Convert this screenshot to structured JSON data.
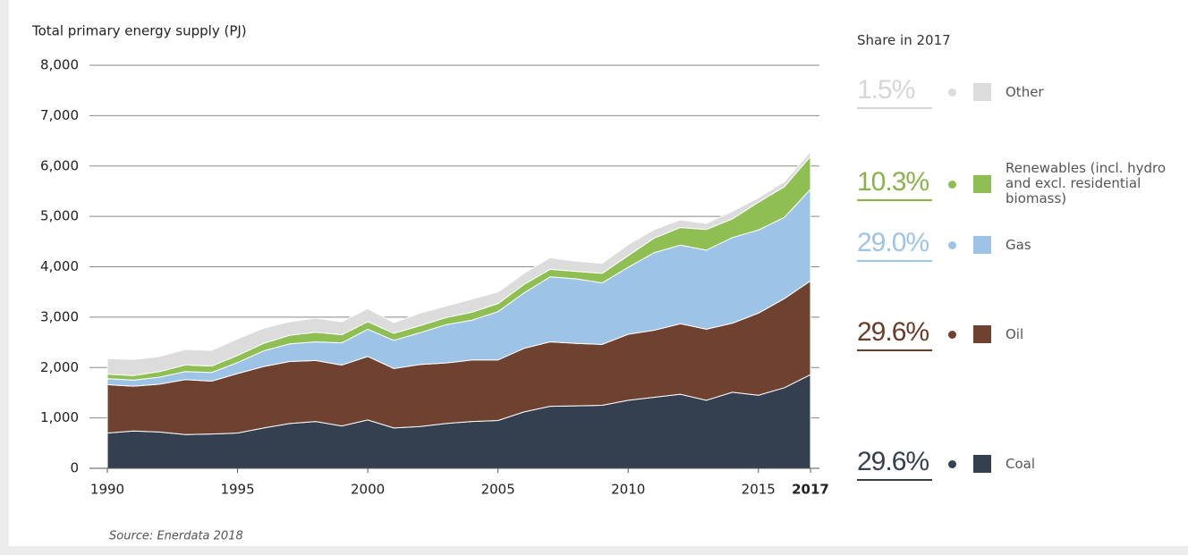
{
  "chart_data": {
    "type": "stacked_area",
    "ylabel": "Total primary energy supply (PJ)",
    "source": "Source: Enerdata 2018",
    "legend_title": "Share in 2017",
    "x": [
      1990,
      1991,
      1992,
      1993,
      1994,
      1995,
      1996,
      1997,
      1998,
      1999,
      2000,
      2001,
      2002,
      2003,
      2004,
      2005,
      2006,
      2007,
      2008,
      2009,
      2010,
      2011,
      2012,
      2013,
      2014,
      2015,
      2016,
      2017
    ],
    "xlim": [
      1990,
      2017
    ],
    "xticks": [
      1990,
      1995,
      2000,
      2005,
      2010,
      2015,
      2017
    ],
    "ylim": [
      0,
      8000
    ],
    "yticks": [
      0,
      {
        "value": 1000,
        "label": "1,000"
      },
      {
        "value": 2000,
        "label": "2,000"
      },
      {
        "value": 3000,
        "label": "3,000"
      },
      {
        "value": 4000,
        "label": "4,000"
      },
      {
        "value": 5000,
        "label": "5,000"
      },
      {
        "value": 6000,
        "label": "6,000"
      },
      {
        "value": 7000,
        "label": "7,000"
      },
      {
        "value": 8000,
        "label": "8,000"
      }
    ],
    "grid": true,
    "series": [
      {
        "name": "Coal",
        "color": "#343f4f",
        "text_color": "#343f4f",
        "share": 29.6,
        "share_label": "29.6%",
        "values": [
          700,
          740,
          720,
          670,
          680,
          700,
          800,
          890,
          930,
          840,
          960,
          800,
          830,
          890,
          930,
          950,
          1120,
          1230,
          1240,
          1250,
          1350,
          1410,
          1470,
          1350,
          1510,
          1450,
          1600,
          1860
        ]
      },
      {
        "name": "Oil",
        "color": "#6e4130",
        "text_color": "#6b3b2a",
        "share": 29.6,
        "share_label": "29.6%",
        "values": [
          960,
          890,
          950,
          1090,
          1050,
          1180,
          1220,
          1230,
          1210,
          1210,
          1260,
          1180,
          1230,
          1200,
          1220,
          1200,
          1260,
          1280,
          1240,
          1210,
          1310,
          1330,
          1400,
          1410,
          1370,
          1630,
          1770,
          1860
        ]
      },
      {
        "name": "Gas",
        "color": "#9dc3e6",
        "text_color": "#9dc3e6",
        "share": 29.0,
        "share_label": "29.0%",
        "values": [
          120,
          120,
          140,
          160,
          170,
          220,
          310,
          350,
          370,
          440,
          540,
          560,
          630,
          760,
          790,
          960,
          1100,
          1290,
          1280,
          1220,
          1330,
          1540,
          1560,
          1570,
          1700,
          1650,
          1610,
          1820
        ]
      },
      {
        "name": "Renewables (incl. hydro and excl. residential biomass)",
        "color": "#8fbf52",
        "text_color": "#8ab24a",
        "share": 10.3,
        "share_label": "10.3%",
        "values": [
          90,
          90,
          110,
          130,
          130,
          140,
          150,
          170,
          190,
          160,
          150,
          140,
          140,
          140,
          160,
          160,
          170,
          150,
          150,
          190,
          230,
          290,
          350,
          410,
          370,
          550,
          610,
          650
        ]
      },
      {
        "name": "Other",
        "color": "#dcdcdc",
        "text_color": "#d6d6d6",
        "share": 1.5,
        "share_label": "1.5%",
        "values": [
          310,
          320,
          300,
          310,
          310,
          330,
          300,
          270,
          280,
          260,
          260,
          210,
          250,
          230,
          260,
          230,
          220,
          230,
          200,
          200,
          220,
          170,
          150,
          120,
          150,
          90,
          100,
          95
        ]
      }
    ]
  }
}
